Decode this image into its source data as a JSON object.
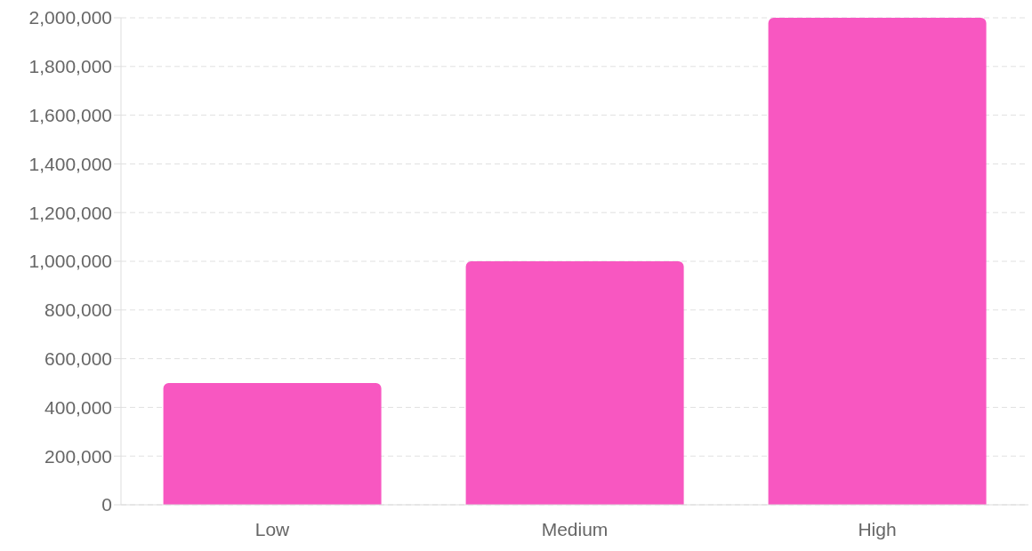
{
  "chart_data": {
    "type": "bar",
    "categories": [
      "Low",
      "Medium",
      "High"
    ],
    "values": [
      500000,
      1000000,
      2000000
    ],
    "color": "#f857c1",
    "ylim": [
      0,
      2000000
    ],
    "yticks": [
      {
        "value": 0,
        "label": "0"
      },
      {
        "value": 200000,
        "label": "200,000"
      },
      {
        "value": 400000,
        "label": "400,000"
      },
      {
        "value": 600000,
        "label": "600,000"
      },
      {
        "value": 800000,
        "label": "800,000"
      },
      {
        "value": 1000000,
        "label": "1,000,000"
      },
      {
        "value": 1200000,
        "label": "1,200,000"
      },
      {
        "value": 1400000,
        "label": "1,400,000"
      },
      {
        "value": 1600000,
        "label": "1,600,000"
      },
      {
        "value": 1800000,
        "label": "1,800,000"
      },
      {
        "value": 2000000,
        "label": "2,000,000"
      }
    ],
    "grid": "y",
    "legend": false
  }
}
